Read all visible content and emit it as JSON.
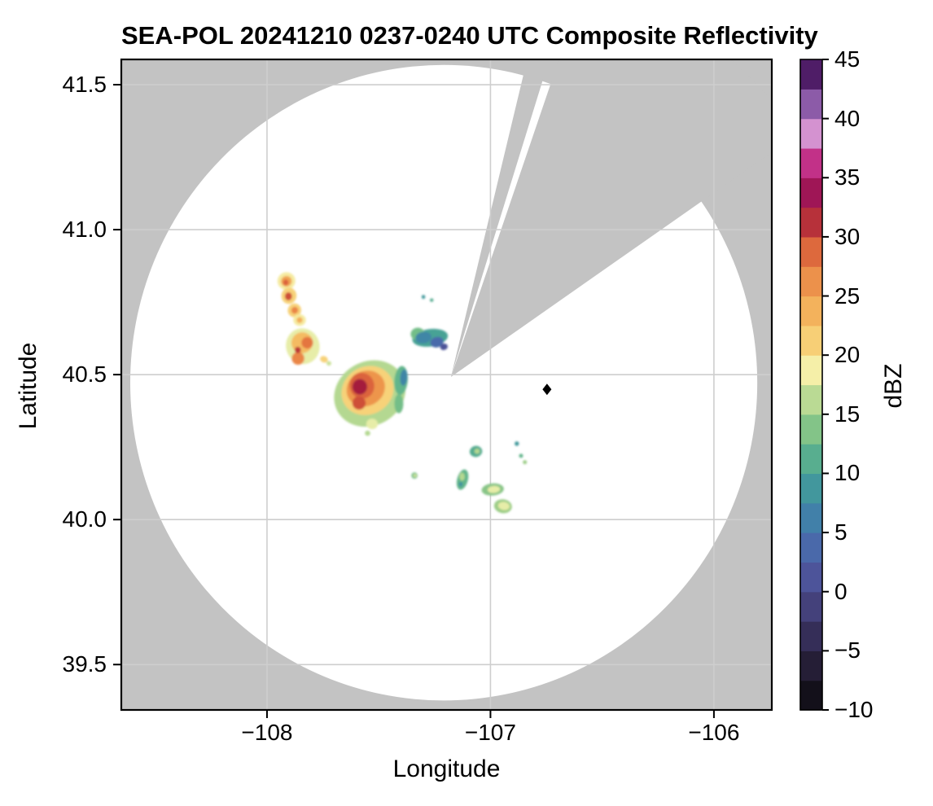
{
  "title": "SEA-POL 20241210 0237-0240 UTC Composite Reflectivity",
  "axes": {
    "x_label": "Longitude",
    "y_label": "Latitude",
    "xlim": [
      -108.652,
      -105.741
    ],
    "ylim": [
      39.3435,
      41.5871
    ],
    "x_ticks": [
      {
        "label": "−108",
        "value": -108
      },
      {
        "label": "−107",
        "value": -107
      },
      {
        "label": "−106",
        "value": -106
      }
    ],
    "y_ticks": [
      {
        "label": "41.5",
        "value": 41.5
      },
      {
        "label": "41.0",
        "value": 41.0
      },
      {
        "label": "40.5",
        "value": 40.5
      },
      {
        "label": "40.0",
        "value": 40.0
      },
      {
        "label": "39.5",
        "value": 39.5
      }
    ],
    "grid": true,
    "background_color": "#c3c3c3",
    "coverage_color": "#ffffff",
    "gridline_color": "#cecece"
  },
  "colorbar": {
    "label": "dBZ",
    "vmin": -10,
    "vmax": 45,
    "band_step": 2.5,
    "ticks": [
      {
        "label": "45",
        "value": 45
      },
      {
        "label": "40",
        "value": 40
      },
      {
        "label": "35",
        "value": 35
      },
      {
        "label": "30",
        "value": 30
      },
      {
        "label": "25",
        "value": 25
      },
      {
        "label": "20",
        "value": 20
      },
      {
        "label": "15",
        "value": 15
      },
      {
        "label": "10",
        "value": 10
      },
      {
        "label": "5",
        "value": 5
      },
      {
        "label": "0",
        "value": 0
      },
      {
        "label": "−5",
        "value": -5
      },
      {
        "label": "−10",
        "value": -10
      }
    ]
  },
  "chart_data": {
    "type": "heatmap",
    "subtype": "radar-composite-reflectivity-ppi",
    "units": "dBZ",
    "radar_center": {
      "lon": -107.177,
      "lat": 40.492
    },
    "coverage_ellipse": {
      "lon": -107.209,
      "lat": 40.472,
      "rx_deg": 1.403,
      "ry_deg": 1.096
    },
    "blocked_sectors_deg": [
      [
        13.5,
        17.2
      ],
      [
        18.8,
        55.0
      ]
    ],
    "site_marker": {
      "shape": "diamond",
      "color": "#000000",
      "lon": -106.747,
      "lat": 40.449
    },
    "colormap_stops": [
      [
        -10,
        "#0a090d"
      ],
      [
        -7.5,
        "#1c1726"
      ],
      [
        -5,
        "#2d2546"
      ],
      [
        -2.5,
        "#3d3769"
      ],
      [
        0,
        "#4a4b8d"
      ],
      [
        2.5,
        "#4f5da6"
      ],
      [
        5,
        "#4474ae"
      ],
      [
        7.5,
        "#3e8ba4"
      ],
      [
        10,
        "#46a295"
      ],
      [
        12.5,
        "#69ba88"
      ],
      [
        15,
        "#9ccd87"
      ],
      [
        17,
        "#cce29b"
      ],
      [
        18.5,
        "#f4f2af"
      ],
      [
        20,
        "#f8dd85"
      ],
      [
        22.5,
        "#f5c166"
      ],
      [
        25,
        "#f0a352"
      ],
      [
        27.5,
        "#e87f43"
      ],
      [
        29.5,
        "#d75b39"
      ],
      [
        31,
        "#bd3739"
      ],
      [
        32.5,
        "#97123f"
      ],
      [
        34,
        "#a1175b"
      ],
      [
        35.5,
        "#b62377"
      ],
      [
        36.8,
        "#ca3b94"
      ],
      [
        38,
        "#db74bc"
      ],
      [
        39,
        "#d19cd6"
      ],
      [
        40.2,
        "#a678c0"
      ],
      [
        42,
        "#7a4796"
      ],
      [
        43.5,
        "#54206c"
      ],
      [
        45,
        "#370b4f"
      ]
    ],
    "echo_spots": [
      [
        -107.913,
        40.823,
        0.04,
        0.03,
        -20,
        19
      ],
      [
        -107.913,
        40.822,
        0.024,
        0.018,
        -20,
        25
      ],
      [
        -107.916,
        40.818,
        0.012,
        0.01,
        0,
        29
      ],
      [
        -107.902,
        40.772,
        0.034,
        0.028,
        10,
        21
      ],
      [
        -107.904,
        40.77,
        0.016,
        0.014,
        0,
        30
      ],
      [
        -107.877,
        40.722,
        0.03,
        0.024,
        30,
        21
      ],
      [
        -107.876,
        40.722,
        0.015,
        0.012,
        30,
        27
      ],
      [
        -107.854,
        40.688,
        0.028,
        0.02,
        0,
        19
      ],
      [
        -107.854,
        40.688,
        0.013,
        0.01,
        0,
        24
      ],
      [
        -107.84,
        40.598,
        0.075,
        0.062,
        -15,
        18
      ],
      [
        -107.843,
        40.61,
        0.048,
        0.036,
        -15,
        23
      ],
      [
        -107.82,
        40.61,
        0.026,
        0.02,
        0,
        28
      ],
      [
        -107.861,
        40.556,
        0.028,
        0.022,
        0,
        27
      ],
      [
        -107.862,
        40.585,
        0.014,
        0.011,
        0,
        31
      ],
      [
        -107.745,
        40.553,
        0.018,
        0.011,
        20,
        21
      ],
      [
        -107.723,
        40.539,
        0.011,
        0.008,
        0,
        17
      ],
      [
        -107.54,
        40.435,
        0.165,
        0.11,
        -30,
        16
      ],
      [
        -107.55,
        40.445,
        0.12,
        0.082,
        -30,
        21
      ],
      [
        -107.558,
        40.452,
        0.088,
        0.06,
        -28,
        26
      ],
      [
        -107.575,
        40.462,
        0.055,
        0.045,
        -20,
        29
      ],
      [
        -107.585,
        40.458,
        0.033,
        0.027,
        0,
        32
      ],
      [
        -107.588,
        40.402,
        0.03,
        0.023,
        0,
        30
      ],
      [
        -107.53,
        40.33,
        0.026,
        0.018,
        0,
        18
      ],
      [
        -107.4,
        40.48,
        0.03,
        0.05,
        5,
        12
      ],
      [
        -107.388,
        40.49,
        0.016,
        0.028,
        5,
        7
      ],
      [
        -107.41,
        40.4,
        0.02,
        0.033,
        0,
        13
      ],
      [
        -107.55,
        40.298,
        0.012,
        0.009,
        0,
        16
      ],
      [
        -107.27,
        40.627,
        0.08,
        0.03,
        -8,
        10
      ],
      [
        -107.325,
        40.64,
        0.032,
        0.022,
        0,
        13
      ],
      [
        -107.3,
        40.628,
        0.036,
        0.02,
        -8,
        7
      ],
      [
        -107.24,
        40.612,
        0.03,
        0.018,
        -15,
        4
      ],
      [
        -107.208,
        40.596,
        0.017,
        0.011,
        -20,
        1
      ],
      [
        -107.3,
        40.768,
        0.008,
        0.007,
        0,
        9
      ],
      [
        -107.263,
        40.757,
        0.008,
        0.006,
        0,
        11
      ],
      [
        -107.065,
        40.235,
        0.028,
        0.019,
        -10,
        11
      ],
      [
        -107.06,
        40.236,
        0.012,
        0.009,
        0,
        16
      ],
      [
        -106.882,
        40.262,
        0.01,
        0.008,
        0,
        9
      ],
      [
        -106.863,
        40.22,
        0.009,
        0.007,
        0,
        12
      ],
      [
        -106.846,
        40.198,
        0.009,
        0.007,
        0,
        15
      ],
      [
        -107.34,
        40.152,
        0.014,
        0.011,
        0,
        13
      ],
      [
        -107.338,
        40.152,
        0.008,
        0.006,
        0,
        17
      ],
      [
        -107.125,
        40.138,
        0.024,
        0.036,
        15,
        12
      ],
      [
        -107.127,
        40.148,
        0.012,
        0.014,
        0,
        16
      ],
      [
        -107.133,
        40.122,
        0.008,
        0.008,
        0,
        8
      ],
      [
        -106.99,
        40.104,
        0.05,
        0.021,
        -5,
        14
      ],
      [
        -106.985,
        40.104,
        0.028,
        0.012,
        -5,
        18
      ],
      [
        -106.944,
        40.046,
        0.04,
        0.024,
        8,
        15
      ],
      [
        -106.94,
        40.047,
        0.026,
        0.014,
        8,
        18
      ]
    ]
  }
}
